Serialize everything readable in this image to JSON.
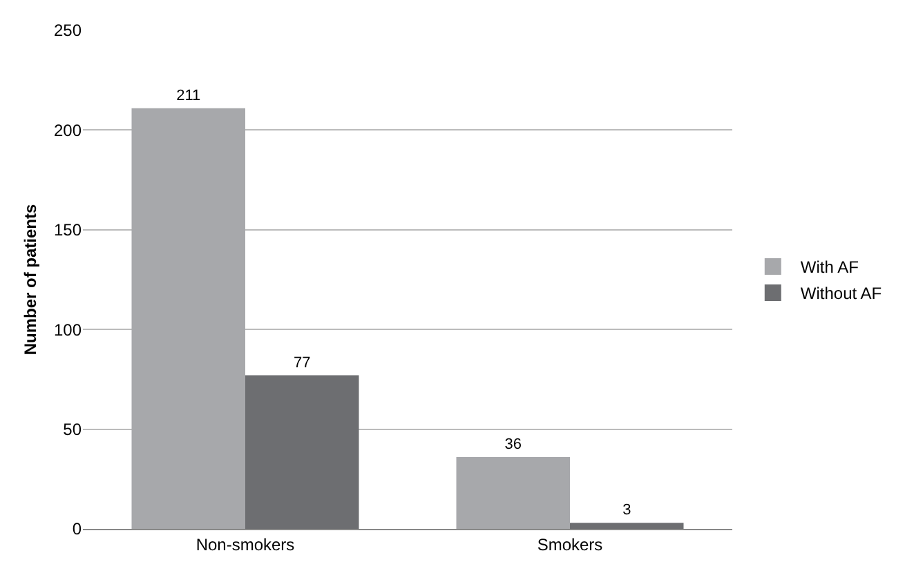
{
  "chart_data": {
    "type": "bar",
    "ylabel": "Number of patients",
    "categories": [
      "Non-smokers",
      "Smokers"
    ],
    "series": [
      {
        "name": "With AF",
        "color": "#a7a8ab",
        "values": [
          211,
          36
        ]
      },
      {
        "name": "Without AF",
        "color": "#6d6e71",
        "values": [
          77,
          3
        ]
      }
    ],
    "ylim": [
      0,
      250
    ],
    "yticks": [
      0,
      50,
      100,
      150,
      200,
      250
    ],
    "grid": "y",
    "legend": "right",
    "data_labels": true
  }
}
